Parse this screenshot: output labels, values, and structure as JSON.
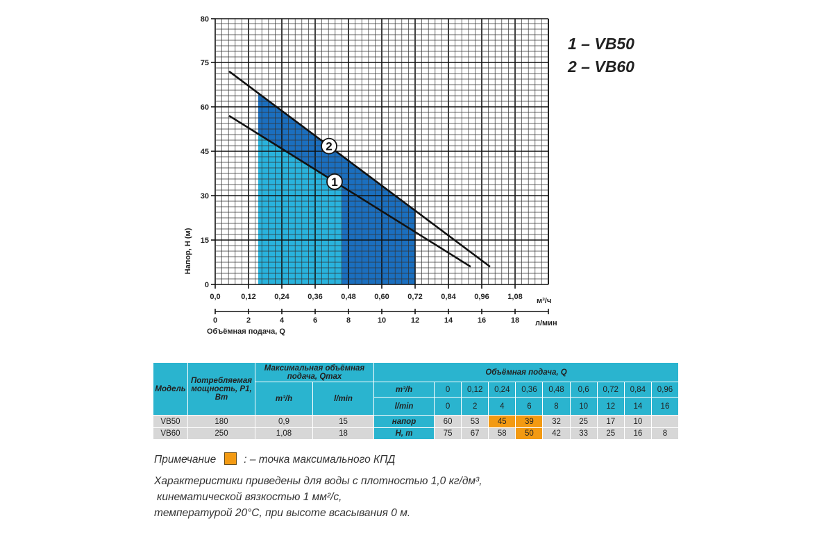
{
  "chart_data": {
    "type": "line",
    "ylabel": "Напор, H (м)",
    "xlabel": "Объёмная подача, Q",
    "x_unit_primary": "м³/ч",
    "x_unit_secondary": "л/мин",
    "xlim": [
      0,
      1.2
    ],
    "ylim": [
      0,
      80
    ],
    "x_ticks": [
      "0,0",
      "0,12",
      "0,24",
      "0,36",
      "0,48",
      "0,60",
      "0,72",
      "0,84",
      "0,96",
      "1,08"
    ],
    "x_ticks_secondary": [
      "0",
      "2",
      "4",
      "6",
      "8",
      "10",
      "12",
      "14",
      "16",
      "18"
    ],
    "y_ticks": [
      "0",
      "15",
      "30",
      "45",
      "60",
      "75",
      "80"
    ],
    "grid": true,
    "series": [
      {
        "name": "1",
        "label": "1",
        "points": [
          [
            0.05,
            57
          ],
          [
            0.92,
            6
          ]
        ]
      },
      {
        "name": "2",
        "label": "2",
        "points": [
          [
            0.05,
            72
          ],
          [
            0.99,
            6
          ]
        ]
      }
    ],
    "shaded_regions": [
      {
        "name": "VB50 working range",
        "x_range": [
          0.155,
          0.455
        ],
        "under": "1",
        "color": "#29b3dd"
      },
      {
        "name": "VB60 working range",
        "x_range": [
          0.155,
          0.72
        ],
        "under": "2",
        "color": "#1b6fbf"
      }
    ],
    "legend": [
      "1 – VB50",
      "2 – VB60"
    ],
    "legend_position": "top-right"
  },
  "table": {
    "h_model": "Модель",
    "h_power": "Потребляемая мощность, P1, Вт",
    "h_qmax": "Максимальная объёмная подача, Qmax",
    "h_qmax_m3": "m³/h",
    "h_qmax_lmin": "l/min",
    "h_flow": "Объёмная подача, Q",
    "row_m3_label": "m³/h",
    "row_lmin_label": "l/min",
    "flow_m3": [
      "0",
      "0,12",
      "0,24",
      "0,36",
      "0,48",
      "0,6",
      "0,72",
      "0,84",
      "0,96"
    ],
    "flow_lmin": [
      "0",
      "2",
      "4",
      "6",
      "8",
      "10",
      "12",
      "14",
      "16"
    ],
    "head_label_1": "напор",
    "head_label_2": "H, m",
    "rows": [
      {
        "model": "VB50",
        "power": "180",
        "qmax_m3": "0,9",
        "qmax_lmin": "15",
        "head": [
          "60",
          "53",
          "45",
          "39",
          "32",
          "25",
          "17",
          "10",
          ""
        ],
        "highlight": [
          2,
          3
        ]
      },
      {
        "model": "VB60",
        "power": "250",
        "qmax_m3": "1,08",
        "qmax_lmin": "18",
        "head": [
          "75",
          "67",
          "58",
          "50",
          "42",
          "33",
          "25",
          "16",
          "8"
        ],
        "highlight": [
          3
        ]
      }
    ]
  },
  "notes": {
    "note_label": "Примечание",
    "note_text": ": – точка максимального КПД",
    "line1": "Характеристики приведены для воды с плотностью 1,0 кг/дм³,",
    "line2": "кинематической вязкостью 1 мм²/с,",
    "line3": "температурой 20°С, при высоте всасывания 0 м."
  },
  "colors": {
    "highlight": "#f39a12",
    "header": "#2ab4cf",
    "light_fill": "#29b3dd",
    "dark_fill": "#1b6fbf"
  }
}
